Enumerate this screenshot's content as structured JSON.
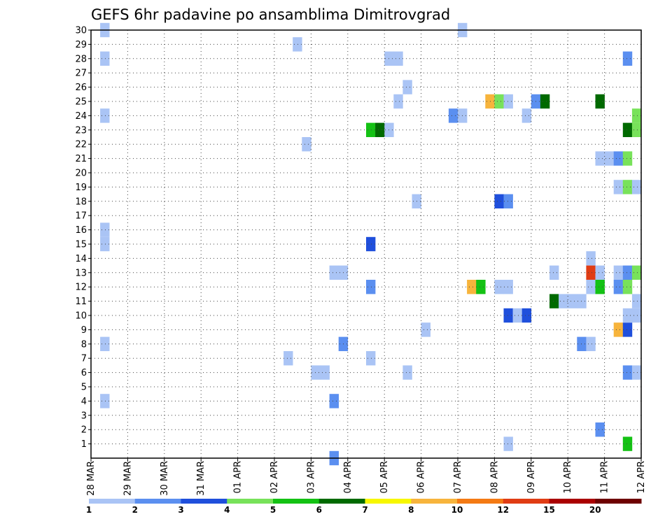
{
  "chart_data": {
    "type": "heatmap",
    "title": "GEFS 6hr padavine po ansamblima Dimitrovgrad",
    "x_tick_labels": [
      "28 MAR",
      "29 MAR",
      "30 MAR",
      "31 MAR",
      "01 APR",
      "02 APR",
      "03 APR",
      "04 APR",
      "05 APR",
      "06 APR",
      "07 APR",
      "08 APR",
      "09 APR",
      "10 APR",
      "11 APR",
      "12 APR"
    ],
    "y_tick_labels": [
      "1",
      "2",
      "3",
      "4",
      "5",
      "6",
      "7",
      "8",
      "9",
      "10",
      "11",
      "12",
      "13",
      "14",
      "15",
      "16",
      "17",
      "18",
      "19",
      "20",
      "21",
      "22",
      "23",
      "24",
      "25",
      "26",
      "27",
      "28",
      "29",
      "30"
    ],
    "ylim": [
      0,
      30
    ],
    "grid": true,
    "legend": {
      "placement": "bottom",
      "levels": [
        "1",
        "2",
        "3",
        "4",
        "5",
        "6",
        "7",
        "8",
        "10",
        "12",
        "15",
        "20"
      ],
      "colors": [
        "#aac4f5",
        "#5b8ff0",
        "#1f4fdc",
        "#78e25a",
        "#14c214",
        "#006a00",
        "#f7f700",
        "#f7b43c",
        "#f47a14",
        "#e03c14",
        "#aa0000",
        "#6e0000"
      ]
    },
    "cells": [
      {
        "day": 0.25,
        "member": 30,
        "value": 1
      },
      {
        "day": 0.25,
        "member": 28,
        "value": 1
      },
      {
        "day": 0.25,
        "member": 24,
        "value": 1
      },
      {
        "day": 0.25,
        "member": 16,
        "value": 1
      },
      {
        "day": 0.25,
        "member": 15,
        "value": 1
      },
      {
        "day": 0.25,
        "member": 8,
        "value": 1
      },
      {
        "day": 0.25,
        "member": 4,
        "value": 1
      },
      {
        "day": 5.5,
        "member": 29,
        "value": 1
      },
      {
        "day": 5.25,
        "member": 7,
        "value": 1
      },
      {
        "day": 5.75,
        "member": 22,
        "value": 1
      },
      {
        "day": 6,
        "member": 6,
        "value": 1
      },
      {
        "day": 6.25,
        "member": 6,
        "value": 1
      },
      {
        "day": 6.5,
        "member": 0,
        "value": 2
      },
      {
        "day": 6.5,
        "member": 4,
        "value": 2
      },
      {
        "day": 6.5,
        "member": 13,
        "value": 1
      },
      {
        "day": 6.75,
        "member": 13,
        "value": 1
      },
      {
        "day": 6.75,
        "member": 8,
        "value": 2
      },
      {
        "day": 7.5,
        "member": 23,
        "value": 5
      },
      {
        "day": 7.75,
        "member": 23,
        "value": 6
      },
      {
        "day": 8,
        "member": 23,
        "value": 1
      },
      {
        "day": 7.5,
        "member": 15,
        "value": 3
      },
      {
        "day": 7.5,
        "member": 12,
        "value": 2
      },
      {
        "day": 7.5,
        "member": 7,
        "value": 1
      },
      {
        "day": 8,
        "member": 28,
        "value": 1
      },
      {
        "day": 8.25,
        "member": 28,
        "value": 1
      },
      {
        "day": 8.25,
        "member": 25,
        "value": 1
      },
      {
        "day": 8.5,
        "member": 26,
        "value": 1
      },
      {
        "day": 8.5,
        "member": 6,
        "value": 1
      },
      {
        "day": 8.75,
        "member": 18,
        "value": 1
      },
      {
        "day": 9,
        "member": 9,
        "value": 1
      },
      {
        "day": 9.75,
        "member": 24,
        "value": 2
      },
      {
        "day": 10,
        "member": 24,
        "value": 1
      },
      {
        "day": 10,
        "member": 30,
        "value": 1
      },
      {
        "day": 10.25,
        "member": 12,
        "value": 8
      },
      {
        "day": 10.5,
        "member": 12,
        "value": 5
      },
      {
        "day": 10.75,
        "member": 25,
        "value": 8
      },
      {
        "day": 11,
        "member": 25,
        "value": 4
      },
      {
        "day": 11.25,
        "member": 25,
        "value": 1
      },
      {
        "day": 11,
        "member": 18,
        "value": 3
      },
      {
        "day": 11.25,
        "member": 18,
        "value": 2
      },
      {
        "day": 11,
        "member": 12,
        "value": 1
      },
      {
        "day": 11.25,
        "member": 12,
        "value": 1
      },
      {
        "day": 11.25,
        "member": 10,
        "value": 3
      },
      {
        "day": 11.5,
        "member": 10,
        "value": 1
      },
      {
        "day": 11.75,
        "member": 10,
        "value": 3
      },
      {
        "day": 11.25,
        "member": 1,
        "value": 1
      },
      {
        "day": 11.75,
        "member": 24,
        "value": 1
      },
      {
        "day": 12,
        "member": 25,
        "value": 2
      },
      {
        "day": 12.25,
        "member": 25,
        "value": 6
      },
      {
        "day": 12.5,
        "member": 13,
        "value": 1
      },
      {
        "day": 12.5,
        "member": 11,
        "value": 6
      },
      {
        "day": 12.75,
        "member": 11,
        "value": 1
      },
      {
        "day": 13,
        "member": 11,
        "value": 1
      },
      {
        "day": 13.25,
        "member": 11,
        "value": 1
      },
      {
        "day": 13.25,
        "member": 8,
        "value": 2
      },
      {
        "day": 13.5,
        "member": 8,
        "value": 1
      },
      {
        "day": 13.5,
        "member": 14,
        "value": 1
      },
      {
        "day": 13.5,
        "member": 13,
        "value": 12
      },
      {
        "day": 13.5,
        "member": 12,
        "value": 1
      },
      {
        "day": 13.75,
        "member": 12,
        "value": 5
      },
      {
        "day": 13.75,
        "member": 13,
        "value": 1
      },
      {
        "day": 13.75,
        "member": 25,
        "value": 6
      },
      {
        "day": 13.75,
        "member": 21,
        "value": 1
      },
      {
        "day": 14,
        "member": 21,
        "value": 1
      },
      {
        "day": 14.25,
        "member": 21,
        "value": 2
      },
      {
        "day": 14.5,
        "member": 21,
        "value": 4
      },
      {
        "day": 13.75,
        "member": 2,
        "value": 2
      },
      {
        "day": 14.25,
        "member": 19,
        "value": 1
      },
      {
        "day": 14.5,
        "member": 19,
        "value": 4
      },
      {
        "day": 14.75,
        "member": 19,
        "value": 1
      },
      {
        "day": 14.25,
        "member": 13,
        "value": 1
      },
      {
        "day": 14.5,
        "member": 13,
        "value": 2
      },
      {
        "day": 14.75,
        "member": 13,
        "value": 4
      },
      {
        "day": 14.25,
        "member": 12,
        "value": 2
      },
      {
        "day": 14.5,
        "member": 12,
        "value": 4
      },
      {
        "day": 14.25,
        "member": 9,
        "value": 8
      },
      {
        "day": 14.5,
        "member": 9,
        "value": 3
      },
      {
        "day": 14.5,
        "member": 10,
        "value": 1
      },
      {
        "day": 14.75,
        "member": 10,
        "value": 1
      },
      {
        "day": 14.75,
        "member": 11,
        "value": 1
      },
      {
        "day": 14.5,
        "member": 6,
        "value": 2
      },
      {
        "day": 14.75,
        "member": 6,
        "value": 1
      },
      {
        "day": 14.5,
        "member": 1,
        "value": 5
      },
      {
        "day": 14.5,
        "member": 28,
        "value": 2
      },
      {
        "day": 14.5,
        "member": 23,
        "value": 6
      },
      {
        "day": 14.75,
        "member": 23,
        "value": 4
      },
      {
        "day": 14.75,
        "member": 24,
        "value": 4
      }
    ]
  }
}
